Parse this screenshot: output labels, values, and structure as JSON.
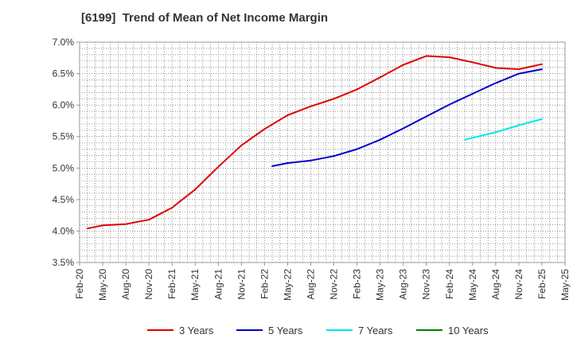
{
  "chart_data": {
    "type": "line",
    "title": "[6199]  Trend of Mean of Net Income Margin",
    "xlabel": "",
    "ylabel": "",
    "x_ticks": [
      "Feb-20",
      "May-20",
      "Aug-20",
      "Nov-20",
      "Feb-21",
      "May-21",
      "Aug-21",
      "Nov-21",
      "Feb-22",
      "May-22",
      "Aug-22",
      "Nov-22",
      "Feb-23",
      "May-23",
      "Aug-23",
      "Nov-23",
      "Feb-24",
      "May-24",
      "Aug-24",
      "Nov-24",
      "Feb-25",
      "May-25"
    ],
    "y_ticks": [
      "3.5%",
      "4.0%",
      "4.5%",
      "5.0%",
      "5.5%",
      "6.0%",
      "6.5%",
      "7.0%"
    ],
    "ylim": [
      3.5,
      7.0
    ],
    "y_unit": "%",
    "grid": true,
    "legend_position": "bottom",
    "series": [
      {
        "name": "3 Years",
        "color": "#dd0000",
        "points": [
          [
            "Mar-20",
            4.04
          ],
          [
            "May-20",
            4.09
          ],
          [
            "Aug-20",
            4.11
          ],
          [
            "Nov-20",
            4.18
          ],
          [
            "Feb-21",
            4.37
          ],
          [
            "May-21",
            4.66
          ],
          [
            "Aug-21",
            5.02
          ],
          [
            "Nov-21",
            5.36
          ],
          [
            "Feb-22",
            5.62
          ],
          [
            "May-22",
            5.84
          ],
          [
            "Aug-22",
            5.98
          ],
          [
            "Nov-22",
            6.1
          ],
          [
            "Feb-23",
            6.25
          ],
          [
            "May-23",
            6.44
          ],
          [
            "Aug-23",
            6.64
          ],
          [
            "Nov-23",
            6.78
          ],
          [
            "Feb-24",
            6.76
          ],
          [
            "May-24",
            6.68
          ],
          [
            "Aug-24",
            6.59
          ],
          [
            "Nov-24",
            6.57
          ],
          [
            "Feb-25",
            6.65
          ]
        ]
      },
      {
        "name": "5 Years",
        "color": "#0000cc",
        "points": [
          [
            "Mar-22",
            5.03
          ],
          [
            "May-22",
            5.08
          ],
          [
            "Aug-22",
            5.12
          ],
          [
            "Nov-22",
            5.19
          ],
          [
            "Feb-23",
            5.3
          ],
          [
            "May-23",
            5.45
          ],
          [
            "Aug-23",
            5.63
          ],
          [
            "Nov-23",
            5.82
          ],
          [
            "Feb-24",
            6.01
          ],
          [
            "May-24",
            6.18
          ],
          [
            "Aug-24",
            6.35
          ],
          [
            "Nov-24",
            6.5
          ],
          [
            "Feb-25",
            6.57
          ]
        ]
      },
      {
        "name": "7 Years",
        "color": "#00e5ee",
        "points": [
          [
            "Apr-24",
            5.45
          ],
          [
            "Aug-24",
            5.57
          ],
          [
            "Nov-24",
            5.68
          ],
          [
            "Feb-25",
            5.78
          ]
        ]
      },
      {
        "name": "10 Years",
        "color": "#008000",
        "points": []
      }
    ]
  }
}
